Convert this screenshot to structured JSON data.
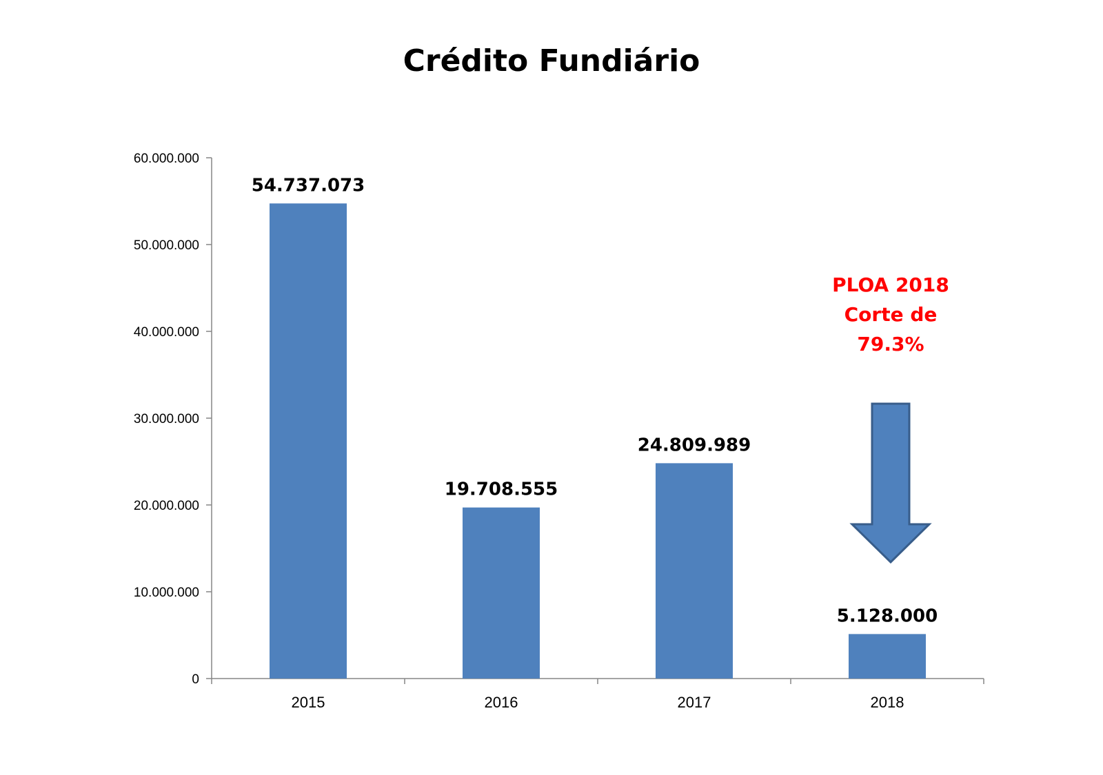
{
  "chart_data": {
    "type": "bar",
    "title": "Crédito Fundiário",
    "xlabel": "",
    "ylabel": "",
    "categories": [
      "2015",
      "2016",
      "2017",
      "2018"
    ],
    "values": [
      54737073,
      19708555,
      24809989,
      5128000
    ],
    "data_labels": [
      "54.737.073",
      "19.708.555",
      "24.809.989",
      "5.128.000"
    ],
    "ylim": [
      0,
      60000000
    ],
    "yticks": [
      0,
      10000000,
      20000000,
      30000000,
      40000000,
      50000000,
      60000000
    ],
    "ytick_labels": [
      "0",
      "10.000.000",
      "20.000.000",
      "30.000.000",
      "40.000.000",
      "50.000.000",
      "60.000.000"
    ],
    "grid": false,
    "legend": "none",
    "bar_color": "#4f81bd",
    "annotation": {
      "lines": [
        "PLOA 2018",
        "Corte de",
        "79.3%"
      ],
      "color": "#ff0000",
      "arrow": "down-arrow-icon",
      "arrow_fill": "#4f81bd",
      "arrow_stroke": "#385d8a",
      "category": "2018"
    }
  }
}
